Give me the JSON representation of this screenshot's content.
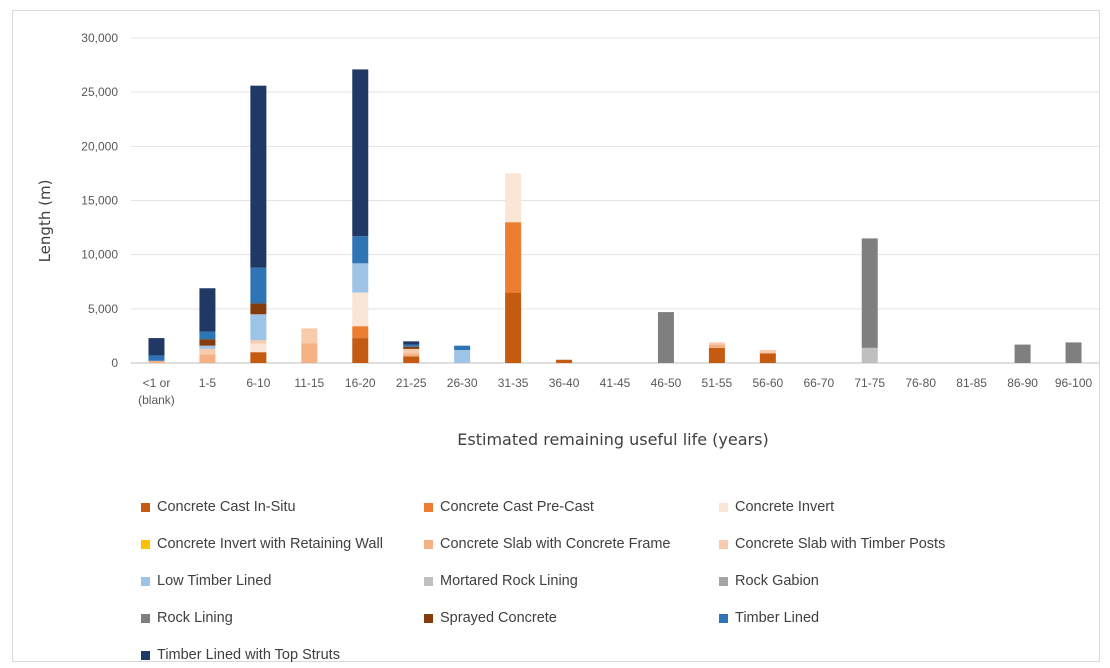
{
  "chart_data": {
    "type": "bar",
    "stacked": true,
    "title": "",
    "xlabel": "Estimated remaining useful life (years)",
    "ylabel": "Length (m)",
    "ylim": [
      0,
      30000
    ],
    "yticks": [
      0,
      5000,
      10000,
      15000,
      20000,
      25000,
      30000
    ],
    "ytick_labels": [
      "0",
      "5,000",
      "10,000",
      "15,000",
      "20,000",
      "25,000",
      "30,000"
    ],
    "grid": true,
    "legend_position": "bottom",
    "categories": [
      "<1 or (blank)",
      "1-5",
      "6-10",
      "11-15",
      "16-20",
      "21-25",
      "26-30",
      "31-35",
      "36-40",
      "41-45",
      "46-50",
      "51-55",
      "56-60",
      "66-70",
      "71-75",
      "76-80",
      "81-85",
      "86-90",
      "96-100"
    ],
    "series": [
      {
        "name": "Concrete Cast In-Situ",
        "color": "#c55a11",
        "values": [
          0,
          0,
          1000,
          0,
          2300,
          600,
          0,
          6500,
          300,
          0,
          0,
          1400,
          900,
          0,
          0,
          0,
          0,
          0,
          0
        ]
      },
      {
        "name": "Concrete Cast Pre-Cast",
        "color": "#ed7d31",
        "values": [
          0,
          0,
          0,
          0,
          1100,
          0,
          0,
          6500,
          0,
          0,
          0,
          0,
          0,
          0,
          0,
          0,
          0,
          0,
          0
        ]
      },
      {
        "name": "Concrete Invert",
        "color": "#fbe5d6",
        "values": [
          0,
          0,
          800,
          0,
          3100,
          0,
          0,
          4500,
          0,
          0,
          0,
          0,
          0,
          0,
          0,
          0,
          0,
          0,
          0
        ]
      },
      {
        "name": "Concrete Invert with Retaining Wall",
        "color": "#ffc000",
        "values": [
          0,
          0,
          0,
          0,
          0,
          0,
          0,
          0,
          0,
          0,
          0,
          0,
          0,
          0,
          0,
          0,
          0,
          0,
          0
        ]
      },
      {
        "name": "Concrete Slab with Concrete Frame",
        "color": "#f4b183",
        "values": [
          200,
          800,
          0,
          1800,
          0,
          300,
          0,
          0,
          0,
          0,
          0,
          300,
          0,
          0,
          0,
          0,
          0,
          0,
          0
        ]
      },
      {
        "name": "Concrete Slab with Timber Posts",
        "color": "#f8cbad",
        "values": [
          0,
          500,
          300,
          1400,
          0,
          400,
          0,
          0,
          0,
          0,
          0,
          200,
          300,
          0,
          0,
          0,
          0,
          0,
          0
        ]
      },
      {
        "name": "Low Timber Lined",
        "color": "#9dc3e6",
        "values": [
          0,
          300,
          2400,
          0,
          2700,
          0,
          1200,
          0,
          0,
          0,
          0,
          0,
          0,
          0,
          0,
          0,
          0,
          0,
          0
        ]
      },
      {
        "name": "Mortared Rock Lining",
        "color": "#bfbfbf",
        "values": [
          0,
          0,
          0,
          0,
          0,
          0,
          0,
          0,
          0,
          0,
          0,
          0,
          0,
          0,
          1400,
          0,
          0,
          0,
          0
        ]
      },
      {
        "name": "Rock Gabion",
        "color": "#a5a5a5",
        "values": [
          0,
          0,
          0,
          0,
          0,
          0,
          0,
          0,
          0,
          0,
          0,
          0,
          0,
          0,
          0,
          0,
          0,
          0,
          0
        ]
      },
      {
        "name": "Rock Lining",
        "color": "#7f7f7f",
        "values": [
          0,
          0,
          0,
          0,
          0,
          0,
          0,
          0,
          0,
          0,
          4700,
          0,
          0,
          0,
          10100,
          0,
          0,
          1700,
          1900
        ]
      },
      {
        "name": "Sprayed Concrete",
        "color": "#843c0c",
        "values": [
          0,
          600,
          1000,
          0,
          0,
          200,
          0,
          0,
          0,
          0,
          0,
          0,
          0,
          0,
          0,
          0,
          0,
          0,
          0
        ]
      },
      {
        "name": "Timber Lined",
        "color": "#2e75b6",
        "values": [
          500,
          700,
          3300,
          0,
          2500,
          200,
          400,
          0,
          0,
          0,
          0,
          0,
          0,
          0,
          0,
          0,
          0,
          0,
          0
        ]
      },
      {
        "name": "Timber Lined with Top Struts",
        "color": "#1f3864",
        "values": [
          1600,
          4000,
          16800,
          0,
          15400,
          300,
          0,
          0,
          0,
          0,
          0,
          0,
          0,
          0,
          0,
          0,
          0,
          0,
          0
        ]
      }
    ]
  }
}
